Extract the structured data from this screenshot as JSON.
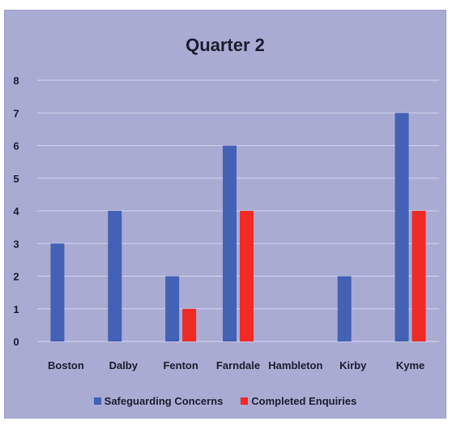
{
  "chart_data": {
    "type": "bar",
    "title": "Quarter 2",
    "categories": [
      "Boston",
      "Dalby",
      "Fenton",
      "Farndale",
      "Hambleton",
      "Kirby",
      "Kyme"
    ],
    "series": [
      {
        "name": "Safeguarding Concerns",
        "color": "#4361b5",
        "values": [
          3,
          4,
          2,
          6,
          0,
          2,
          7
        ]
      },
      {
        "name": "Completed Enquiries",
        "color": "#f02a24",
        "values": [
          0,
          0,
          1,
          4,
          0,
          0,
          4
        ]
      }
    ],
    "xlabel": "",
    "ylabel": "",
    "ylim": [
      0,
      8
    ],
    "yticks": [
      0,
      1,
      2,
      3,
      4,
      5,
      6,
      7,
      8
    ],
    "grid": true,
    "legend_position": "bottom",
    "background_color": "#a9abd3"
  }
}
